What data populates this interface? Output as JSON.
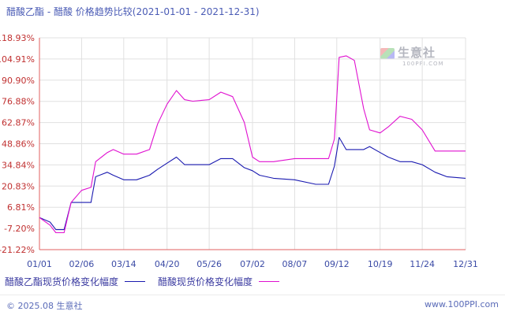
{
  "header": {
    "title": "醋酸乙酯 - 醋酸 价格趋势比较(2021-01-01 - 2021-12-31)"
  },
  "watermark": {
    "cn": "生意社",
    "en": "100PPI.COM"
  },
  "footer": {
    "copyright": "© 2025.08 生意社",
    "url": "www.100PPI.com"
  },
  "colors": {
    "axis": "#e06060",
    "grid": "#e0e0e0",
    "ethyl_acetate": "#1a1ab0",
    "acetic_acid": "#e010d0"
  },
  "chart_data": {
    "type": "line",
    "title": "醋酸乙酯 - 醋酸 价格趋势比较(2021-01-01 - 2021-12-31)",
    "xlabel": "",
    "ylabel": "",
    "ylim": [
      -21.22,
      118.93
    ],
    "yticks": [
      "118.93%",
      "104.91%",
      "90.90%",
      "76.88%",
      "62.87%",
      "48.86%",
      "34.84%",
      "20.83%",
      "6.81%",
      "-7.20%",
      "-21.22%"
    ],
    "xticks": [
      "01/01",
      "02/06",
      "03/14",
      "04/20",
      "05/26",
      "07/02",
      "08/07",
      "09/12",
      "10/19",
      "11/24",
      "12/31"
    ],
    "grid": true,
    "legend_position": "bottom",
    "x": [
      "01/01",
      "01/10",
      "01/15",
      "01/22",
      "01/28",
      "02/06",
      "02/14",
      "02/18",
      "02/28",
      "03/05",
      "03/14",
      "03/25",
      "04/05",
      "04/12",
      "04/20",
      "04/28",
      "05/05",
      "05/12",
      "05/26",
      "06/05",
      "06/15",
      "06/25",
      "07/02",
      "07/08",
      "07/20",
      "08/07",
      "08/25",
      "09/05",
      "09/10",
      "09/14",
      "09/20",
      "09/27",
      "10/05",
      "10/10",
      "10/19",
      "10/26",
      "11/05",
      "11/15",
      "11/24",
      "12/05",
      "12/15",
      "12/31"
    ],
    "series": [
      {
        "name": "醋酸乙酯现货价格变化幅度",
        "values": [
          0,
          -3,
          -8,
          -8,
          10,
          10,
          10,
          27,
          30,
          28,
          25,
          25,
          28,
          32,
          36,
          40,
          35,
          35,
          35,
          39,
          39,
          33,
          31,
          28,
          26,
          25,
          22,
          22,
          34,
          53,
          45,
          45,
          45,
          47,
          43,
          40,
          37,
          37,
          35,
          30,
          27,
          26
        ]
      },
      {
        "name": "醋酸现货价格变化幅度",
        "values": [
          0,
          -5,
          -10,
          -10,
          10,
          18,
          20,
          37,
          43,
          45,
          42,
          42,
          45,
          62,
          75,
          84,
          78,
          77,
          78,
          83,
          80,
          63,
          40,
          37,
          37,
          39,
          39,
          39,
          52,
          106,
          107,
          104,
          72,
          58,
          56,
          60,
          67,
          65,
          58,
          44,
          44,
          44
        ]
      }
    ]
  }
}
